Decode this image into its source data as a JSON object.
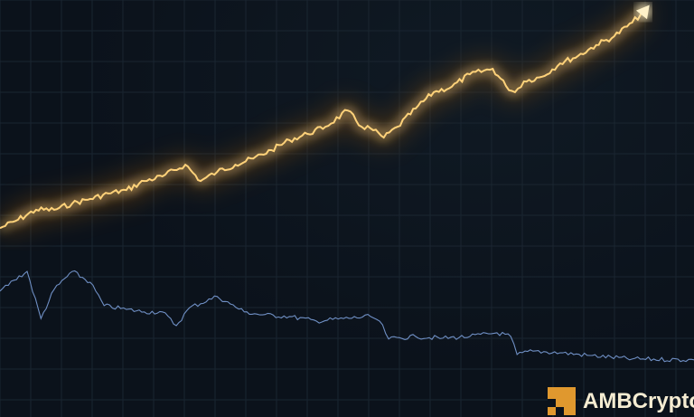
{
  "brand": {
    "name": "AMBCrypto",
    "color": "#e0982e"
  },
  "chart_data": {
    "type": "line",
    "title": "",
    "xlabel": "",
    "ylabel": "",
    "grid": true,
    "legend": "none",
    "xlim": [
      0,
      100
    ],
    "ylim": [
      0,
      100
    ],
    "series": [
      {
        "color": "#ffb22e",
        "style": "glowing line with arrowhead",
        "points": [
          [
            0,
            45.3
          ],
          [
            2.6,
            47.3
          ],
          [
            5.2,
            49.7
          ],
          [
            7.8,
            49.7
          ],
          [
            10.4,
            51.2
          ],
          [
            13,
            52.3
          ],
          [
            15.6,
            53.6
          ],
          [
            18.2,
            54.4
          ],
          [
            20.8,
            56.6
          ],
          [
            23.4,
            57.7
          ],
          [
            26.7,
            60.5
          ],
          [
            28.9,
            56.6
          ],
          [
            31.3,
            58.8
          ],
          [
            33.9,
            60.5
          ],
          [
            36.5,
            62.0
          ],
          [
            39.1,
            64.0
          ],
          [
            41.7,
            66.4
          ],
          [
            44.3,
            67.9
          ],
          [
            46.9,
            69.6
          ],
          [
            50.1,
            73.5
          ],
          [
            52.1,
            69.6
          ],
          [
            53.4,
            69.2
          ],
          [
            55.3,
            67.0
          ],
          [
            57.3,
            69.6
          ],
          [
            59.9,
            74.0
          ],
          [
            62.5,
            77.9
          ],
          [
            65.1,
            79.2
          ],
          [
            67.7,
            82.2
          ],
          [
            71,
            83.5
          ],
          [
            72.9,
            79.4
          ],
          [
            74.2,
            77.9
          ],
          [
            75.5,
            80.5
          ],
          [
            78.1,
            81.6
          ],
          [
            80.7,
            84.8
          ],
          [
            83.3,
            86.6
          ],
          [
            85.9,
            89.2
          ],
          [
            88.5,
            91.3
          ],
          [
            91.1,
            94.6
          ],
          [
            93.1,
            97.8
          ]
        ]
      },
      {
        "color": "#6f8fc4",
        "style": "thin line",
        "points": [
          [
            0,
            30.2
          ],
          [
            2,
            32.8
          ],
          [
            3.9,
            34.9
          ],
          [
            5.9,
            23.6
          ],
          [
            7.8,
            30.6
          ],
          [
            10.4,
            34.9
          ],
          [
            13,
            32.3
          ],
          [
            15,
            26.7
          ],
          [
            18.2,
            25.8
          ],
          [
            20.8,
            25.2
          ],
          [
            23.4,
            25.2
          ],
          [
            25.4,
            21.9
          ],
          [
            27.3,
            26.2
          ],
          [
            31.3,
            28.9
          ],
          [
            33.2,
            27.1
          ],
          [
            35.2,
            25.2
          ],
          [
            37.8,
            24.5
          ],
          [
            41.7,
            24.1
          ],
          [
            45.6,
            23.0
          ],
          [
            49.5,
            23.6
          ],
          [
            53.4,
            24.1
          ],
          [
            54.7,
            23.0
          ],
          [
            56,
            18.7
          ],
          [
            59.9,
            19.3
          ],
          [
            63.8,
            18.9
          ],
          [
            67.7,
            19.3
          ],
          [
            71.6,
            20.2
          ],
          [
            73.6,
            19.3
          ],
          [
            74.5,
            15.0
          ],
          [
            76.8,
            15.8
          ],
          [
            80.7,
            15.4
          ],
          [
            84.6,
            14.8
          ],
          [
            91.1,
            13.9
          ],
          [
            100,
            13.7
          ]
        ]
      }
    ]
  }
}
